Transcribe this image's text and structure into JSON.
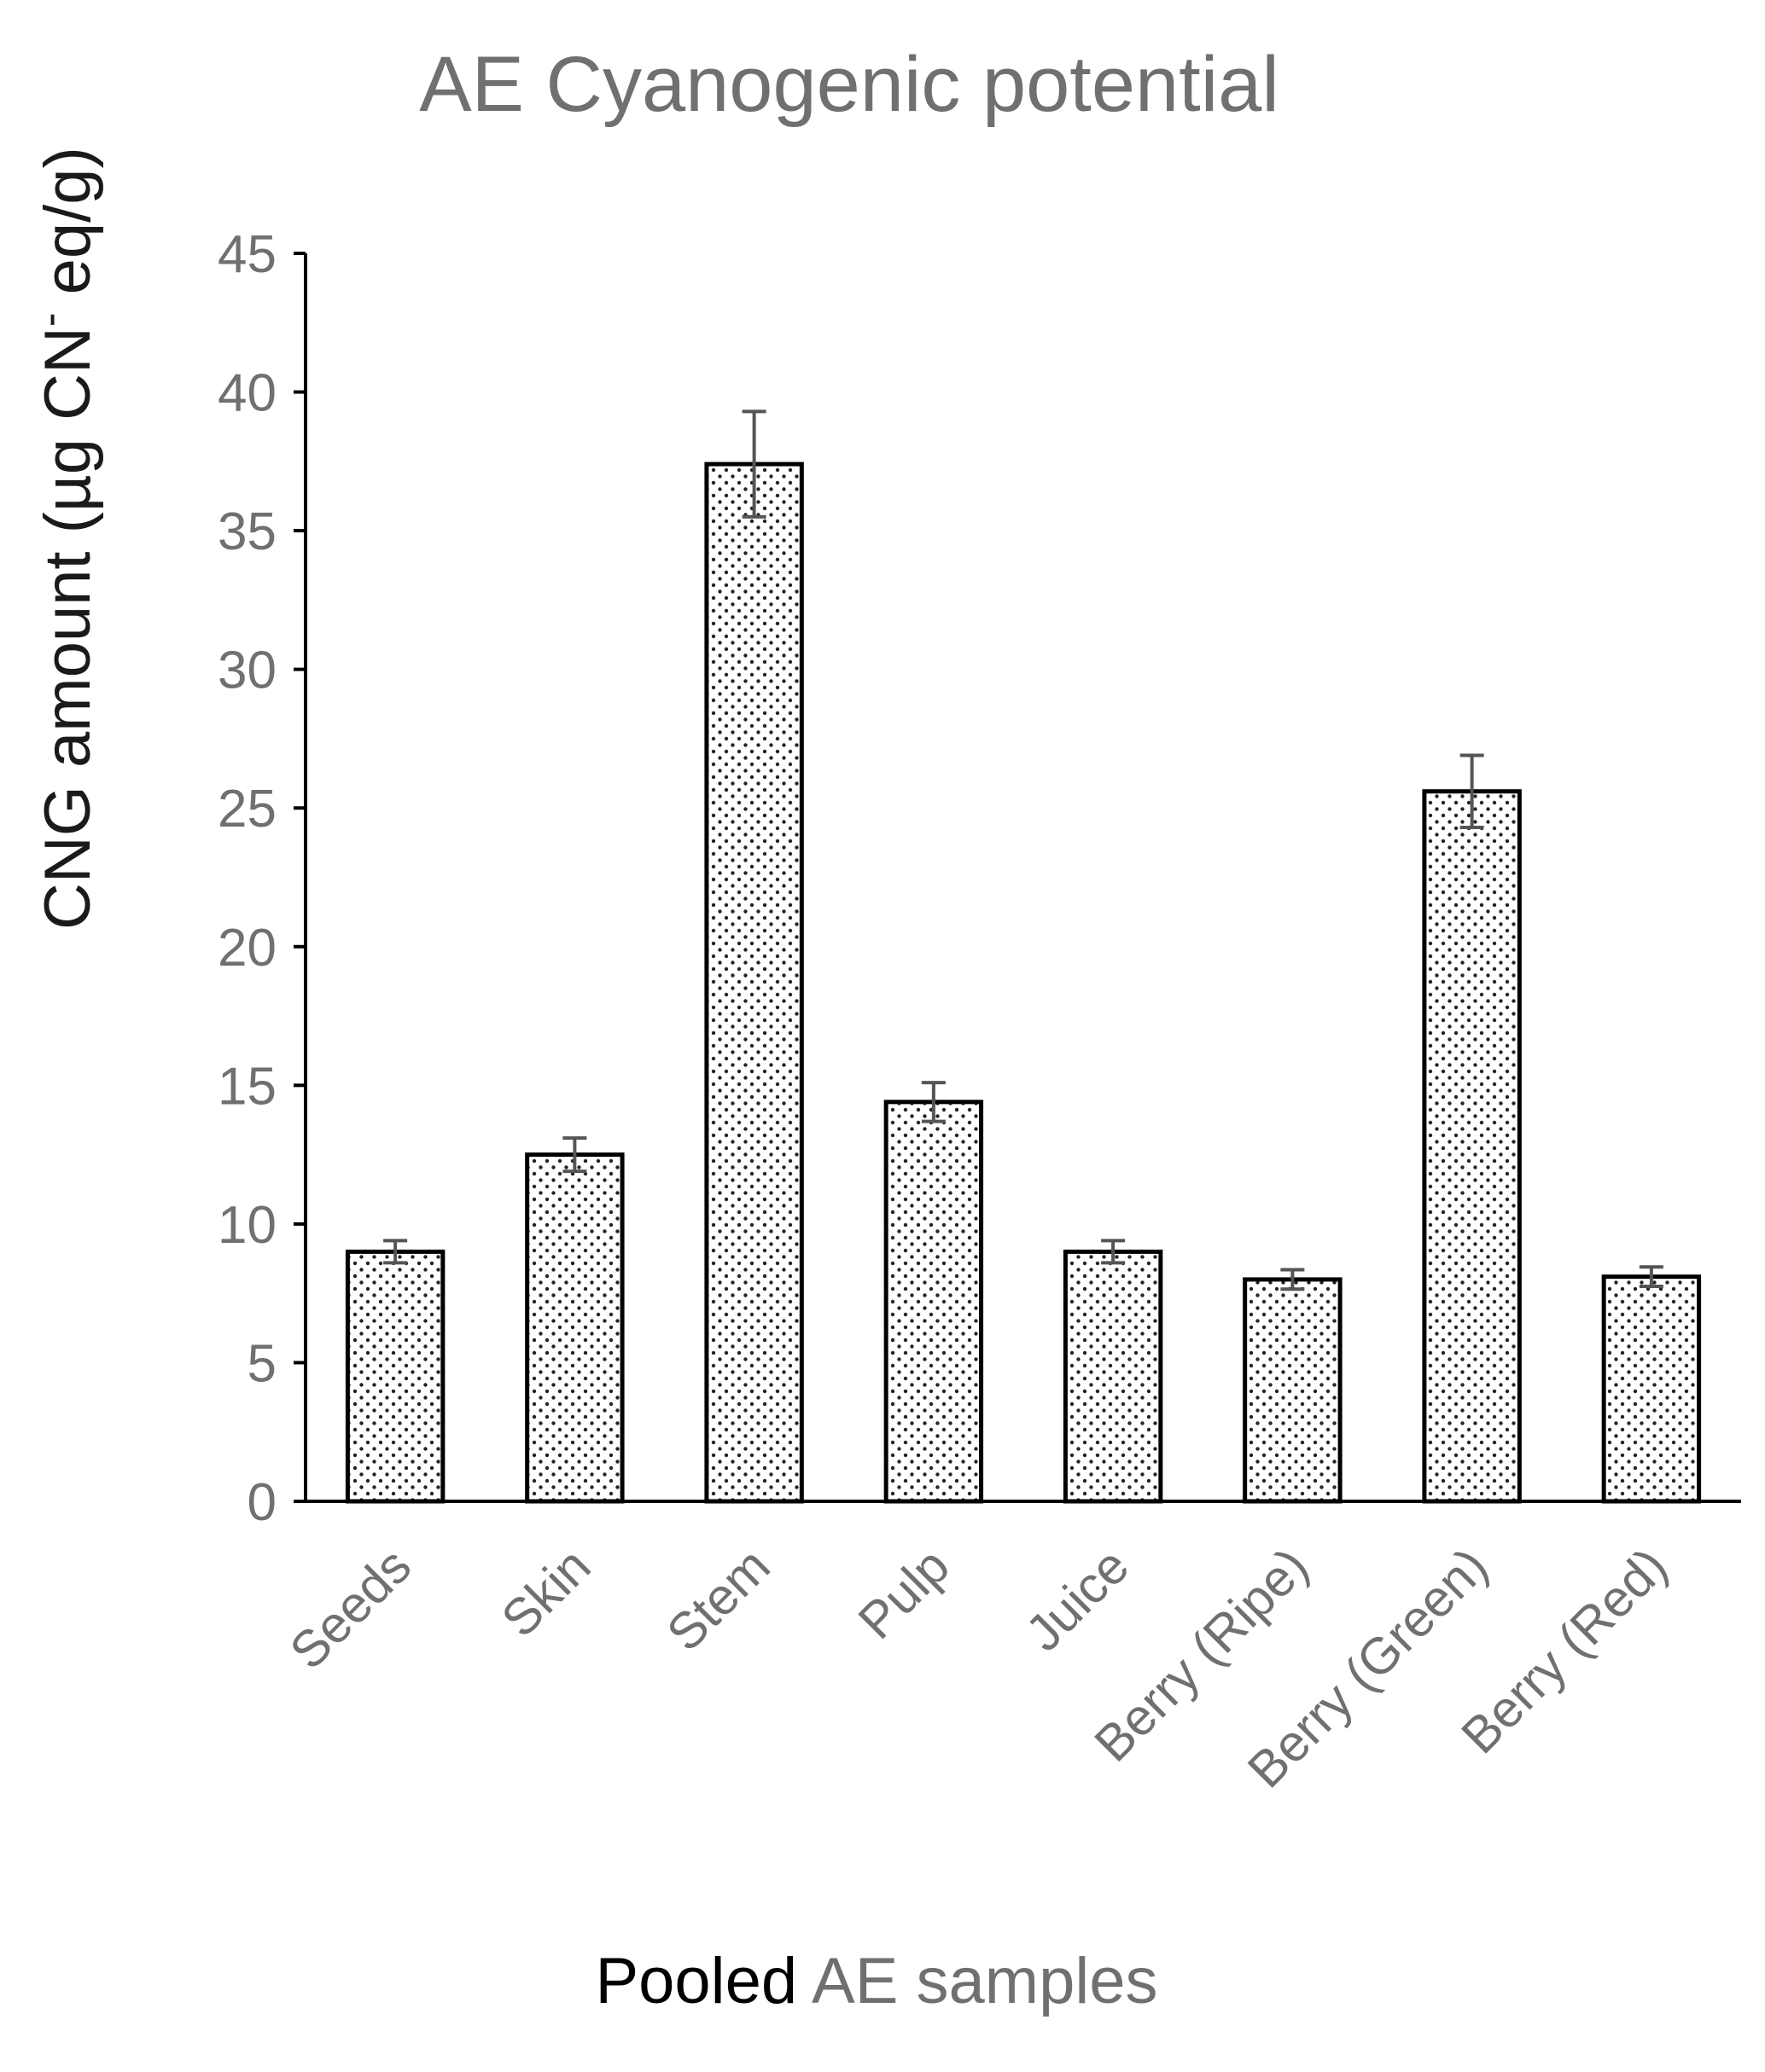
{
  "chart_data": {
    "type": "bar",
    "title": "AE Cyanogenic potential",
    "ylabel": {
      "prefix": "CNG amount (µg  CN",
      "superscript": "-",
      "suffix": " eq/g)"
    },
    "xlabel": {
      "part1": "Pooled",
      "part2": " AE samples"
    },
    "categories": [
      "Seeds",
      "Skin",
      "Stem",
      "Pulp",
      "Juice",
      "Berry (Ripe)",
      "Berry (Green)",
      "Berry (Red)"
    ],
    "values": [
      9.0,
      12.5,
      37.4,
      14.4,
      9.0,
      8.0,
      25.6,
      8.1
    ],
    "errors": [
      0.4,
      0.6,
      1.9,
      0.7,
      0.4,
      0.35,
      1.3,
      0.35
    ],
    "ylim": [
      0,
      45
    ],
    "yticks": [
      0,
      5,
      10,
      15,
      20,
      25,
      30,
      35,
      40,
      45
    ],
    "grid": false,
    "legend": "none",
    "colors": {
      "bar_fill": "#ffffff",
      "bar_dots": "#222222",
      "bar_edge": "#000000",
      "error_bar": "#555555",
      "axis": "#000000",
      "tick_text": "#707070",
      "title_text": "#707070"
    }
  }
}
